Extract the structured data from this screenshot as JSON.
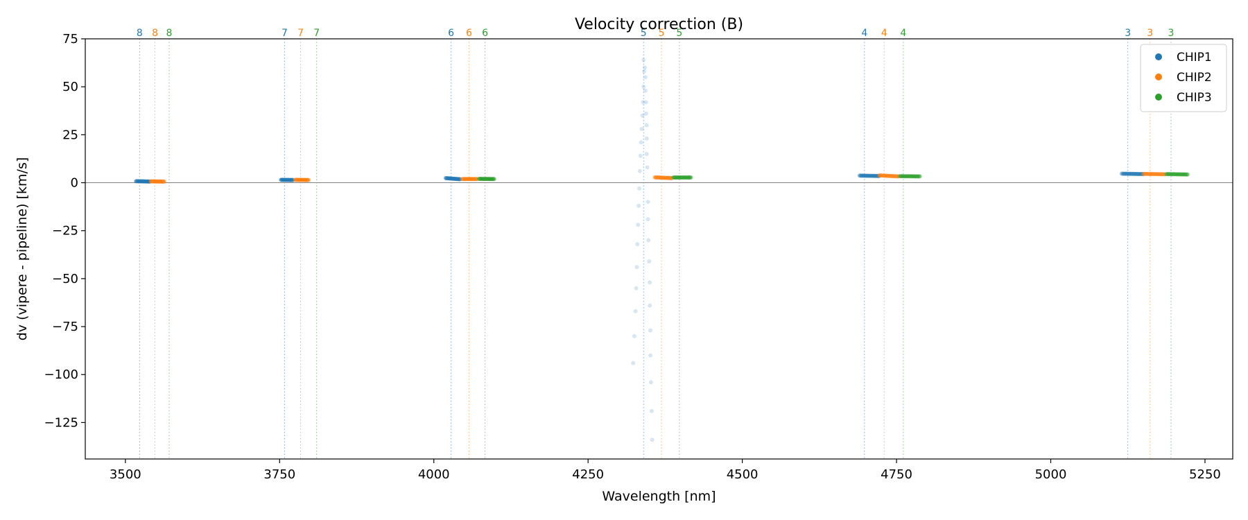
{
  "chart_data": {
    "type": "scatter",
    "title": "Velocity correction (B)",
    "xlabel": "Wavelength [nm]",
    "ylabel": "dv (vipere - pipeline) [km/s]",
    "xlim": [
      3435,
      5295
    ],
    "ylim": [
      -144,
      75
    ],
    "xticks": [
      3500,
      3750,
      4000,
      4250,
      4500,
      4750,
      5000,
      5250
    ],
    "yticks": [
      75,
      50,
      25,
      0,
      -25,
      -50,
      -75,
      -100,
      -125
    ],
    "grid": false,
    "zero_line": true,
    "legend_position": "top-right",
    "colors": {
      "CHIP1": "#1f77b4",
      "CHIP2": "#ff7f0e",
      "CHIP3": "#2ca02c"
    },
    "series": [
      {
        "name": "CHIP1",
        "color": "#1f77b4",
        "segments": [
          {
            "order": 8,
            "x_start": 3517,
            "x_end": 3540,
            "dv_start": 0.8,
            "dv_end": 0.6
          },
          {
            "order": 7,
            "x_start": 3752,
            "x_end": 3772,
            "dv_start": 1.5,
            "dv_end": 1.4
          },
          {
            "order": 6,
            "x_start": 4019,
            "x_end": 4043,
            "dv_start": 2.4,
            "dv_end": 1.8
          },
          {
            "order": 4,
            "x_start": 4690,
            "x_end": 4722,
            "dv_start": 3.7,
            "dv_end": 3.5
          },
          {
            "order": 3,
            "x_start": 5115,
            "x_end": 5150,
            "dv_start": 4.7,
            "dv_end": 4.5
          }
        ],
        "outliers": [
          {
            "x": 4340,
            "y": 64
          },
          {
            "x": 4341,
            "y": 58
          },
          {
            "x": 4340,
            "y": 50
          },
          {
            "x": 4339,
            "y": 42
          },
          {
            "x": 4338,
            "y": 35
          },
          {
            "x": 4337,
            "y": 28
          },
          {
            "x": 4336,
            "y": 21
          },
          {
            "x": 4335,
            "y": 14
          },
          {
            "x": 4334,
            "y": 6
          },
          {
            "x": 4333,
            "y": -3
          },
          {
            "x": 4332,
            "y": -12
          },
          {
            "x": 4331,
            "y": -22
          },
          {
            "x": 4330,
            "y": -32
          },
          {
            "x": 4329,
            "y": -44
          },
          {
            "x": 4328,
            "y": -55
          },
          {
            "x": 4327,
            "y": -67
          },
          {
            "x": 4325,
            "y": -80
          },
          {
            "x": 4323,
            "y": -94
          },
          {
            "x": 4342,
            "y": 60
          },
          {
            "x": 4343,
            "y": 55
          },
          {
            "x": 4343,
            "y": 48
          },
          {
            "x": 4344,
            "y": 42
          },
          {
            "x": 4344,
            "y": 36
          },
          {
            "x": 4345,
            "y": 30
          },
          {
            "x": 4345,
            "y": 23
          },
          {
            "x": 4345,
            "y": 15
          },
          {
            "x": 4346,
            "y": 8
          },
          {
            "x": 4347,
            "y": -10
          },
          {
            "x": 4347,
            "y": -19
          },
          {
            "x": 4348,
            "y": -30
          },
          {
            "x": 4349,
            "y": -41
          },
          {
            "x": 4350,
            "y": -52
          },
          {
            "x": 4350,
            "y": -64
          },
          {
            "x": 4351,
            "y": -77
          },
          {
            "x": 4351,
            "y": -90
          },
          {
            "x": 4352,
            "y": -104
          },
          {
            "x": 4353,
            "y": -119
          },
          {
            "x": 4354,
            "y": -134
          }
        ]
      },
      {
        "name": "CHIP2",
        "color": "#ff7f0e",
        "segments": [
          {
            "order": 8,
            "x_start": 3541,
            "x_end": 3563,
            "dv_start": 0.7,
            "dv_end": 0.6
          },
          {
            "order": 7,
            "x_start": 3775,
            "x_end": 3797,
            "dv_start": 1.5,
            "dv_end": 1.4
          },
          {
            "order": 6,
            "x_start": 4046,
            "x_end": 4070,
            "dv_start": 1.9,
            "dv_end": 1.9
          },
          {
            "order": 5,
            "x_start": 4358,
            "x_end": 4386,
            "dv_start": 2.8,
            "dv_end": 2.4
          },
          {
            "order": 4,
            "x_start": 4722,
            "x_end": 4753,
            "dv_start": 3.8,
            "dv_end": 3.3
          },
          {
            "order": 3,
            "x_start": 5150,
            "x_end": 5185,
            "dv_start": 4.6,
            "dv_end": 4.4
          }
        ]
      },
      {
        "name": "CHIP3",
        "color": "#2ca02c",
        "segments": [
          {
            "order": 6,
            "x_start": 4073,
            "x_end": 4098,
            "dv_start": 2.0,
            "dv_end": 1.9
          },
          {
            "order": 5,
            "x_start": 4388,
            "x_end": 4417,
            "dv_start": 2.7,
            "dv_end": 2.7
          },
          {
            "order": 4,
            "x_start": 4755,
            "x_end": 4788,
            "dv_start": 3.4,
            "dv_end": 3.3
          },
          {
            "order": 3,
            "x_start": 5187,
            "x_end": 5222,
            "dv_start": 4.5,
            "dv_end": 4.3
          }
        ]
      }
    ],
    "order_markers": [
      {
        "label": "8",
        "chip": "CHIP1",
        "x": 3523
      },
      {
        "label": "8",
        "chip": "CHIP2",
        "x": 3548
      },
      {
        "label": "8",
        "chip": "CHIP3",
        "x": 3571
      },
      {
        "label": "7",
        "chip": "CHIP1",
        "x": 3758
      },
      {
        "label": "7",
        "chip": "CHIP2",
        "x": 3784
      },
      {
        "label": "7",
        "chip": "CHIP3",
        "x": 3810
      },
      {
        "label": "6",
        "chip": "CHIP1",
        "x": 4028
      },
      {
        "label": "6",
        "chip": "CHIP2",
        "x": 4057
      },
      {
        "label": "6",
        "chip": "CHIP3",
        "x": 4083
      },
      {
        "label": "5",
        "chip": "CHIP1",
        "x": 4340
      },
      {
        "label": "5",
        "chip": "CHIP2",
        "x": 4369
      },
      {
        "label": "5",
        "chip": "CHIP3",
        "x": 4398
      },
      {
        "label": "4",
        "chip": "CHIP1",
        "x": 4698
      },
      {
        "label": "4",
        "chip": "CHIP2",
        "x": 4730
      },
      {
        "label": "4",
        "chip": "CHIP3",
        "x": 4761
      },
      {
        "label": "3",
        "chip": "CHIP1",
        "x": 5125
      },
      {
        "label": "3",
        "chip": "CHIP2",
        "x": 5161
      },
      {
        "label": "3",
        "chip": "CHIP3",
        "x": 5195
      }
    ],
    "legend": [
      "CHIP1",
      "CHIP2",
      "CHIP3"
    ]
  }
}
